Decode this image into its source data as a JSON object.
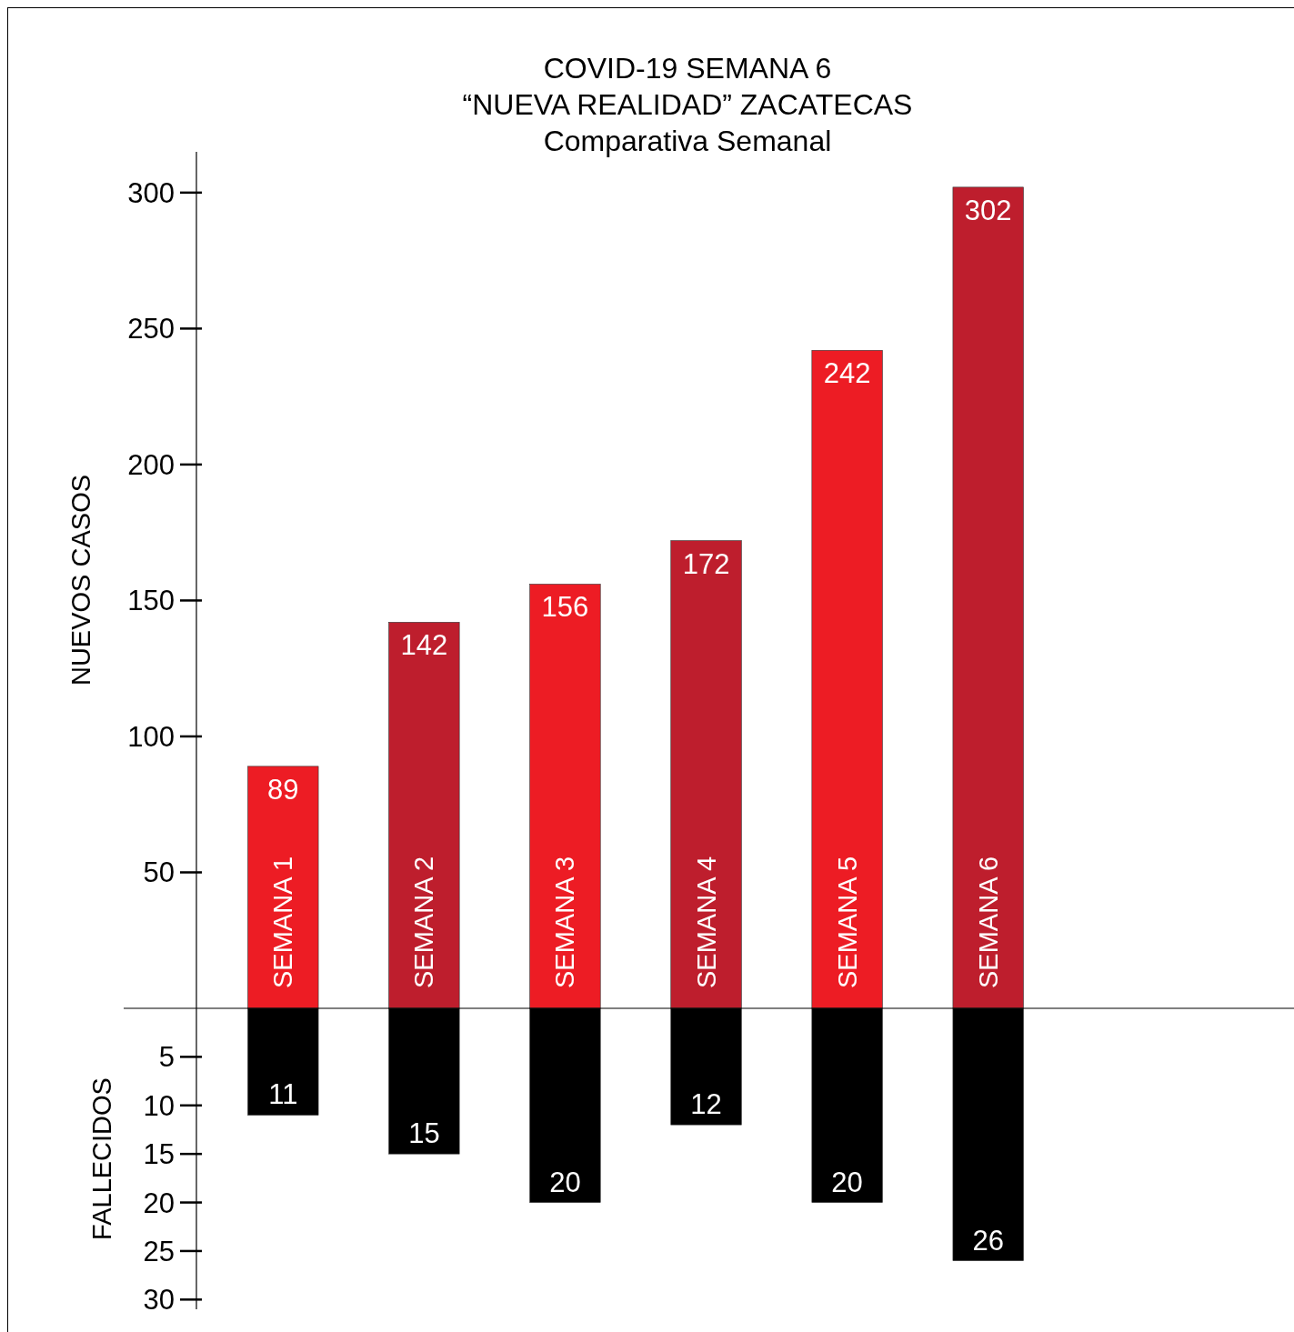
{
  "chart_data": [
    {
      "type": "bar",
      "title": "COVID-19     SEMANA 6\n“NUEVA REALIDAD”     ZACATECAS\nComparativa Semanal",
      "ylabel": "NUEVOS CASOS",
      "categories": [
        "SEMANA 1",
        "SEMANA 2",
        "SEMANA 3",
        "SEMANA 4",
        "SEMANA 5",
        "SEMANA 6"
      ],
      "values": [
        89,
        142,
        156,
        172,
        242,
        302
      ],
      "colors": [
        "#ed1c24",
        "#be1e2d",
        "#ed1c24",
        "#be1e2d",
        "#ed1c24",
        "#be1e2d"
      ],
      "data_labels": true,
      "ylim": [
        0,
        315
      ],
      "yticks": [
        50,
        100,
        150,
        200,
        250,
        300
      ]
    },
    {
      "type": "bar",
      "ylabel": "FALLECIDOS",
      "categories": [
        null,
        null,
        null,
        null,
        null,
        null
      ],
      "values": [
        11,
        15,
        20,
        12,
        20,
        26
      ],
      "color": "#000000",
      "data_labels": true,
      "tick_labels": "y",
      "ylim": [
        31,
        0
      ],
      "yticks": [
        5,
        10,
        15,
        20,
        25,
        30
      ]
    }
  ]
}
